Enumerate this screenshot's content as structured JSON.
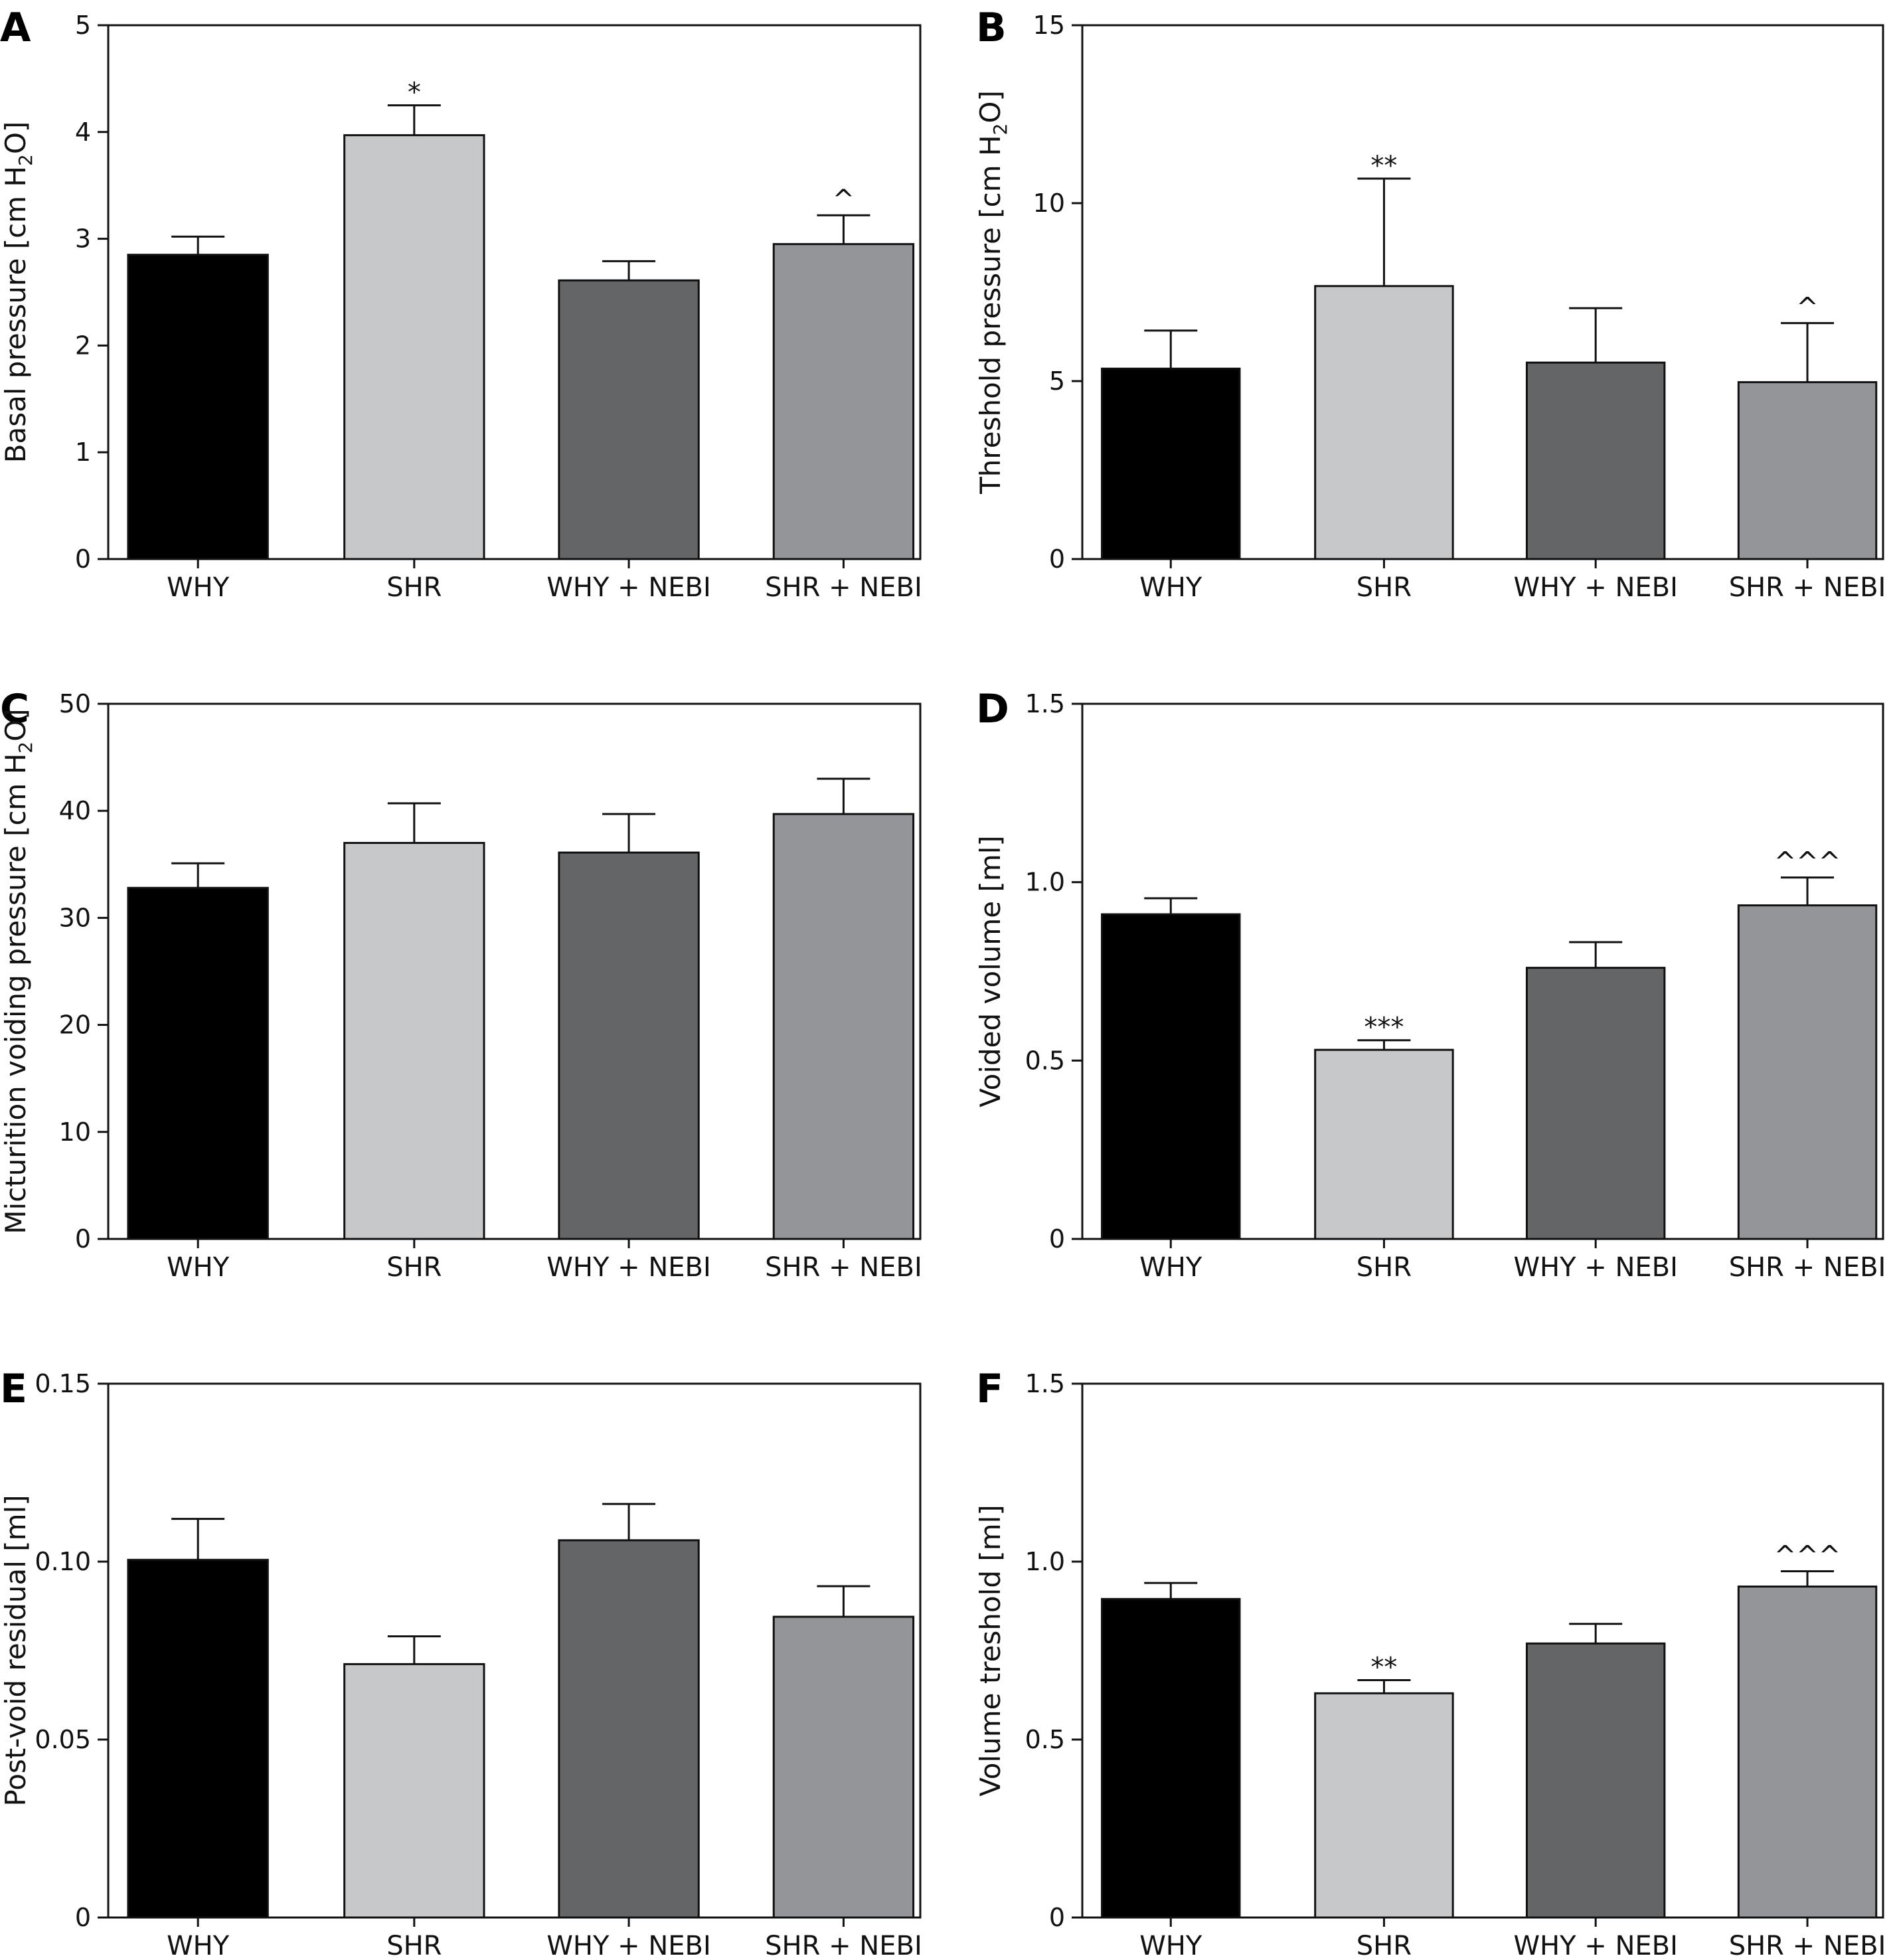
{
  "categories": [
    "WHY",
    "SHR",
    "WHY + NEBI",
    "SHR + NEBI"
  ],
  "colors": [
    "#000000",
    "#c7c8ca",
    "#646567",
    "#939598"
  ],
  "chart_data": [
    {
      "type": "bar",
      "panel": "A",
      "ylabel": "Basal pressure [cm H",
      "ylabel_sub": "2",
      "ylabel_tail": "O]",
      "ylim": [
        0,
        5
      ],
      "yticks": [
        {
          "value": 0,
          "label": "0"
        },
        {
          "value": 1,
          "label": "1"
        },
        {
          "value": 2,
          "label": "2"
        },
        {
          "value": 3,
          "label": "3"
        },
        {
          "value": 4,
          "label": "4"
        },
        {
          "value": 5,
          "label": "5"
        }
      ],
      "values": [
        2.85,
        3.97,
        2.61,
        2.95
      ],
      "errors": [
        0.17,
        0.28,
        0.18,
        0.27
      ],
      "annotations": [
        "",
        "*",
        "",
        "^"
      ]
    },
    {
      "type": "bar",
      "panel": "B",
      "ylabel": "Threshold pressure [cm H",
      "ylabel_sub": "2",
      "ylabel_tail": "O]",
      "ylim": [
        0,
        15
      ],
      "yticks": [
        {
          "value": 0,
          "label": "0"
        },
        {
          "value": 5,
          "label": "5"
        },
        {
          "value": 10,
          "label": "10"
        },
        {
          "value": 15,
          "label": "15"
        }
      ],
      "values": [
        5.35,
        7.67,
        5.52,
        4.97
      ],
      "errors": [
        1.07,
        3.02,
        1.53,
        1.66
      ],
      "annotations": [
        "",
        "**",
        "",
        "^"
      ]
    },
    {
      "type": "bar",
      "panel": "C",
      "ylabel": "Micturition voiding pressure [cm H",
      "ylabel_sub": "2",
      "ylabel_tail": "O]",
      "ylim": [
        0,
        50
      ],
      "yticks": [
        {
          "value": 0,
          "label": "0"
        },
        {
          "value": 10,
          "label": "10"
        },
        {
          "value": 20,
          "label": "20"
        },
        {
          "value": 30,
          "label": "30"
        },
        {
          "value": 40,
          "label": "40"
        },
        {
          "value": 50,
          "label": "50"
        }
      ],
      "values": [
        32.8,
        37.0,
        36.1,
        39.7
      ],
      "errors": [
        2.3,
        3.7,
        3.6,
        3.3
      ],
      "annotations": [
        "",
        "",
        "",
        ""
      ]
    },
    {
      "type": "bar",
      "panel": "D",
      "ylabel": "Voided volume [ml]",
      "ylim": [
        0,
        1.5
      ],
      "yticks": [
        {
          "value": 0,
          "label": "0"
        },
        {
          "value": 0.5,
          "label": "0.5"
        },
        {
          "value": 1.0,
          "label": "1.0"
        },
        {
          "value": 1.5,
          "label": "1.5"
        }
      ],
      "values": [
        0.91,
        0.53,
        0.76,
        0.935
      ],
      "errors": [
        0.045,
        0.027,
        0.072,
        0.078
      ],
      "annotations": [
        "",
        "***",
        "",
        "^^^"
      ]
    },
    {
      "type": "bar",
      "panel": "E",
      "ylabel": "Post-void residual [ml]",
      "ylim": [
        0,
        0.15
      ],
      "yticks": [
        {
          "value": 0,
          "label": "0"
        },
        {
          "value": 0.05,
          "label": "0.05"
        },
        {
          "value": 0.1,
          "label": "0.10"
        },
        {
          "value": 0.15,
          "label": "0.15"
        }
      ],
      "values": [
        0.1005,
        0.0712,
        0.106,
        0.0845
      ],
      "errors": [
        0.0115,
        0.0078,
        0.0102,
        0.0086
      ],
      "annotations": [
        "",
        "",
        "",
        ""
      ]
    },
    {
      "type": "bar",
      "panel": "F",
      "ylabel": "Volume treshold [ml]",
      "ylim": [
        0,
        1.5
      ],
      "yticks": [
        {
          "value": 0,
          "label": "0"
        },
        {
          "value": 0.5,
          "label": "0.5"
        },
        {
          "value": 1.0,
          "label": "1.0"
        },
        {
          "value": 1.5,
          "label": "1.5"
        }
      ],
      "values": [
        0.895,
        0.63,
        0.77,
        0.93
      ],
      "errors": [
        0.045,
        0.037,
        0.055,
        0.043
      ],
      "annotations": [
        "",
        "**",
        "",
        "^^^"
      ]
    }
  ]
}
